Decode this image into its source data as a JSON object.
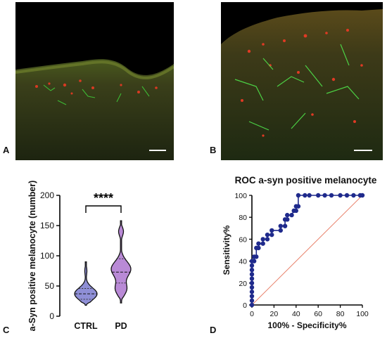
{
  "panels": {
    "a": {
      "letter": "A"
    },
    "b": {
      "letter": "B"
    },
    "c": {
      "letter": "C"
    },
    "d": {
      "letter": "D"
    }
  },
  "chart_data": [
    {
      "type": "violin",
      "title": "",
      "ylabel": "a-Syn positive melanocyte (number)",
      "xlabel": "",
      "ylim": [
        0,
        200
      ],
      "yticks": [
        0,
        50,
        100,
        150,
        200
      ],
      "categories": [
        "CTRL",
        "PD"
      ],
      "colors": [
        "#8f8fd6",
        "#b98ad6"
      ],
      "significance": "****",
      "series": [
        {
          "name": "CTRL",
          "min": 18,
          "max": 90,
          "median": 37,
          "q1": 28,
          "q3": 46
        },
        {
          "name": "PD",
          "min": 22,
          "max": 158,
          "median": 73,
          "q1": 55,
          "q3": 95
        }
      ]
    },
    {
      "type": "line",
      "title": "ROC a-syn positive melanocyte",
      "xlabel": "100% - Specificity%",
      "ylabel": "Sensitivity%",
      "xlim": [
        0,
        100
      ],
      "ylim": [
        0,
        100
      ],
      "xticks": [
        0,
        20,
        40,
        60,
        80,
        100
      ],
      "yticks": [
        0,
        20,
        40,
        60,
        80,
        100
      ],
      "colors": {
        "roc": "#1f2a8c",
        "reference": "#e8806a"
      },
      "roc_points": [
        [
          0,
          0
        ],
        [
          0,
          4
        ],
        [
          0,
          8
        ],
        [
          0,
          12
        ],
        [
          0,
          16
        ],
        [
          0,
          20
        ],
        [
          0,
          24
        ],
        [
          0,
          28
        ],
        [
          0,
          32
        ],
        [
          0,
          36
        ],
        [
          0,
          40
        ],
        [
          2,
          40
        ],
        [
          2,
          44
        ],
        [
          4,
          44
        ],
        [
          4,
          52
        ],
        [
          6,
          52
        ],
        [
          6,
          56
        ],
        [
          10,
          56
        ],
        [
          10,
          60
        ],
        [
          14,
          60
        ],
        [
          14,
          64
        ],
        [
          18,
          64
        ],
        [
          18,
          68
        ],
        [
          26,
          68
        ],
        [
          26,
          72
        ],
        [
          30,
          72
        ],
        [
          30,
          78
        ],
        [
          32,
          78
        ],
        [
          32,
          82
        ],
        [
          36,
          82
        ],
        [
          38,
          86
        ],
        [
          40,
          86
        ],
        [
          40,
          90
        ],
        [
          42,
          90
        ],
        [
          42,
          100
        ],
        [
          48,
          100
        ],
        [
          52,
          100
        ],
        [
          60,
          100
        ],
        [
          66,
          100
        ],
        [
          72,
          100
        ],
        [
          80,
          100
        ],
        [
          86,
          100
        ],
        [
          92,
          100
        ],
        [
          98,
          100
        ],
        [
          100,
          100
        ]
      ]
    }
  ]
}
